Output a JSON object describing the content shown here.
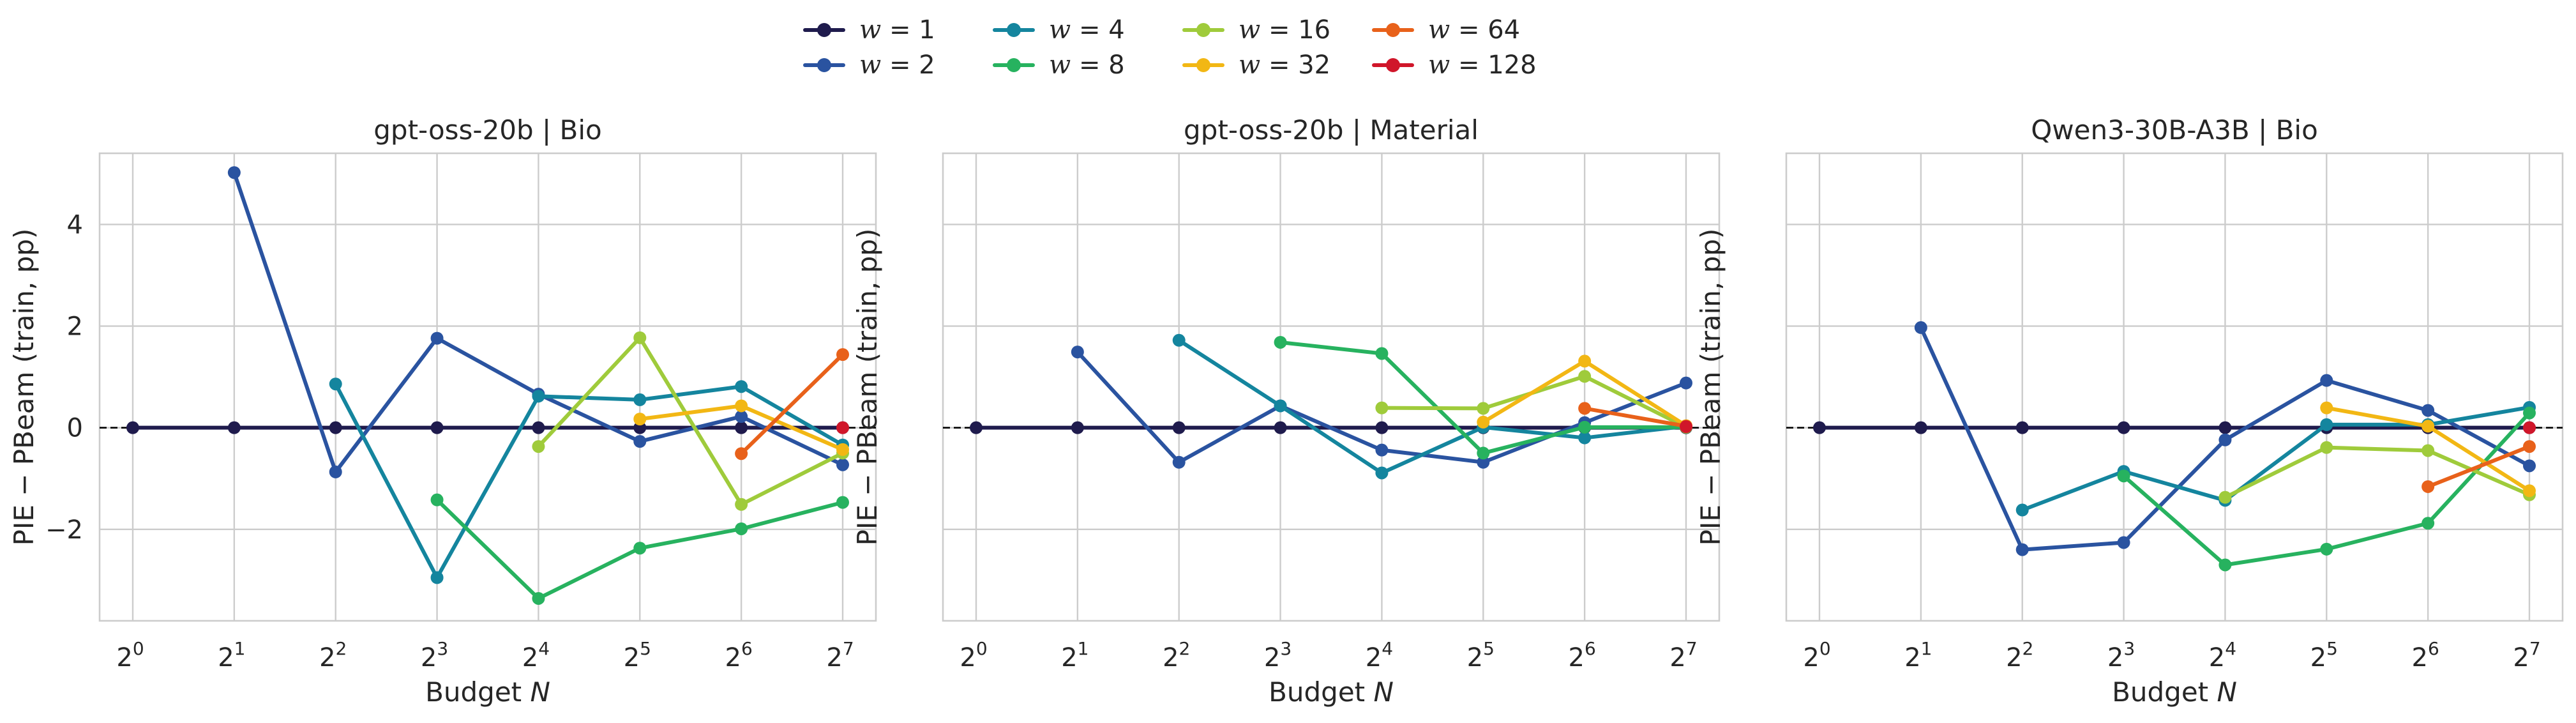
{
  "legend": {
    "entries": [
      {
        "var": "w",
        "value": "1",
        "color": "#1f1b4d"
      },
      {
        "var": "w",
        "value": "2",
        "color": "#2a53a0"
      },
      {
        "var": "w",
        "value": "4",
        "color": "#14859e"
      },
      {
        "var": "w",
        "value": "8",
        "color": "#27b25f"
      },
      {
        "var": "w",
        "value": "16",
        "color": "#9fcb3b"
      },
      {
        "var": "w",
        "value": "32",
        "color": "#f2b714"
      },
      {
        "var": "w",
        "value": "64",
        "color": "#e8611a"
      },
      {
        "var": "w",
        "value": "128",
        "color": "#d0162a"
      }
    ]
  },
  "chart_data": [
    {
      "type": "line",
      "title": "gpt-oss-20b | Bio",
      "xlabel": "Budget N",
      "ylabel": "PIE − PBeam (train, pp)",
      "x_scale": "log2",
      "x_ticks": [
        1,
        2,
        4,
        8,
        16,
        32,
        64,
        128
      ],
      "x_tick_exponents": [
        "0",
        "1",
        "2",
        "3",
        "4",
        "5",
        "6",
        "7"
      ],
      "ylim": [
        -3.8,
        5.4
      ],
      "y_ticks": [
        -2,
        0,
        2,
        4
      ],
      "show_y_tick_labels": true,
      "grid": true,
      "reference_line": 0,
      "series": [
        {
          "name": "w = 1",
          "x": [
            1,
            2,
            4,
            8,
            16,
            32,
            64,
            128
          ],
          "y": [
            0,
            0,
            0,
            0,
            0,
            0,
            0,
            0
          ]
        },
        {
          "name": "w = 2",
          "x": [
            2,
            4,
            8,
            16,
            32,
            64,
            128
          ],
          "y": [
            5.02,
            -0.87,
            1.76,
            0.66,
            -0.27,
            0.22,
            -0.73
          ]
        },
        {
          "name": "w = 4",
          "x": [
            4,
            8,
            16,
            32,
            64,
            128
          ],
          "y": [
            0.86,
            -2.95,
            0.62,
            0.55,
            0.81,
            -0.34
          ]
        },
        {
          "name": "w = 8",
          "x": [
            8,
            16,
            32,
            64,
            128
          ],
          "y": [
            -1.42,
            -3.36,
            -2.37,
            -1.99,
            -1.47
          ]
        },
        {
          "name": "w = 16",
          "x": [
            16,
            32,
            64,
            128
          ],
          "y": [
            -0.37,
            1.77,
            -1.51,
            -0.5
          ]
        },
        {
          "name": "w = 32",
          "x": [
            32,
            64,
            128
          ],
          "y": [
            0.17,
            0.43,
            -0.43
          ]
        },
        {
          "name": "w = 64",
          "x": [
            64,
            128
          ],
          "y": [
            -0.51,
            1.44
          ]
        },
        {
          "name": "w = 128",
          "x": [
            128
          ],
          "y": [
            0
          ]
        }
      ]
    },
    {
      "type": "line",
      "title": "gpt-oss-20b | Material",
      "xlabel": "Budget N",
      "ylabel": "PIE − PBeam (train, pp)",
      "x_scale": "log2",
      "x_ticks": [
        1,
        2,
        4,
        8,
        16,
        32,
        64,
        128
      ],
      "x_tick_exponents": [
        "0",
        "1",
        "2",
        "3",
        "4",
        "5",
        "6",
        "7"
      ],
      "ylim": [
        -3.8,
        5.4
      ],
      "y_ticks": [
        -2,
        0,
        2,
        4
      ],
      "show_y_tick_labels": false,
      "grid": true,
      "reference_line": 0,
      "series": [
        {
          "name": "w = 1",
          "x": [
            1,
            2,
            4,
            8,
            16,
            32,
            64,
            128
          ],
          "y": [
            0,
            0,
            0,
            0,
            0,
            0,
            0,
            0
          ]
        },
        {
          "name": "w = 2",
          "x": [
            2,
            4,
            8,
            16,
            32,
            64,
            128
          ],
          "y": [
            1.49,
            -0.68,
            0.43,
            -0.44,
            -0.68,
            0.1,
            0.88
          ]
        },
        {
          "name": "w = 4",
          "x": [
            4,
            8,
            16,
            32,
            64,
            128
          ],
          "y": [
            1.72,
            0.43,
            -0.89,
            0.01,
            -0.2,
            0.03
          ]
        },
        {
          "name": "w = 8",
          "x": [
            8,
            16,
            32,
            64,
            128
          ],
          "y": [
            1.68,
            1.46,
            -0.5,
            0.01,
            0.01
          ]
        },
        {
          "name": "w = 16",
          "x": [
            16,
            32,
            64,
            128
          ],
          "y": [
            0.39,
            0.38,
            1.01,
            0.01
          ]
        },
        {
          "name": "w = 32",
          "x": [
            32,
            64,
            128
          ],
          "y": [
            0.11,
            1.31,
            0.04
          ]
        },
        {
          "name": "w = 64",
          "x": [
            64,
            128
          ],
          "y": [
            0.38,
            0.03
          ]
        },
        {
          "name": "w = 128",
          "x": [
            128
          ],
          "y": [
            0.02
          ]
        }
      ]
    },
    {
      "type": "line",
      "title": "Qwen3-30B-A3B | Bio",
      "xlabel": "Budget N",
      "ylabel": "PIE − PBeam (train, pp)",
      "x_scale": "log2",
      "x_ticks": [
        1,
        2,
        4,
        8,
        16,
        32,
        64,
        128
      ],
      "x_tick_exponents": [
        "0",
        "1",
        "2",
        "3",
        "4",
        "5",
        "6",
        "7"
      ],
      "ylim": [
        -3.8,
        5.4
      ],
      "y_ticks": [
        -2,
        0,
        2,
        4
      ],
      "show_y_tick_labels": false,
      "grid": true,
      "reference_line": 0,
      "series": [
        {
          "name": "w = 1",
          "x": [
            1,
            2,
            4,
            8,
            16,
            32,
            64,
            128
          ],
          "y": [
            0,
            0,
            0,
            0,
            0,
            0,
            0,
            0
          ]
        },
        {
          "name": "w = 2",
          "x": [
            2,
            4,
            8,
            16,
            32,
            64,
            128
          ],
          "y": [
            1.97,
            -2.4,
            -2.26,
            -0.24,
            0.93,
            0.34,
            -0.75
          ]
        },
        {
          "name": "w = 4",
          "x": [
            4,
            8,
            16,
            32,
            64,
            128
          ],
          "y": [
            -1.62,
            -0.86,
            -1.43,
            0.06,
            0.06,
            0.4
          ]
        },
        {
          "name": "w = 8",
          "x": [
            8,
            16,
            32,
            64,
            128
          ],
          "y": [
            -0.95,
            -2.7,
            -2.39,
            -1.88,
            0.29
          ]
        },
        {
          "name": "w = 16",
          "x": [
            16,
            32,
            64,
            128
          ],
          "y": [
            -1.37,
            -0.39,
            -0.45,
            -1.32
          ]
        },
        {
          "name": "w = 32",
          "x": [
            32,
            64,
            128
          ],
          "y": [
            0.39,
            0.03,
            -1.24
          ]
        },
        {
          "name": "w = 64",
          "x": [
            64,
            128
          ],
          "y": [
            -1.16,
            -0.37
          ]
        },
        {
          "name": "w = 128",
          "x": [
            128
          ],
          "y": [
            0
          ]
        }
      ]
    }
  ]
}
